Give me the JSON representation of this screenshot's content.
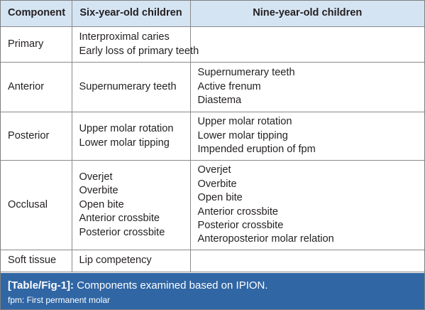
{
  "table": {
    "headers": [
      "Component",
      "Six-year-old children",
      "Nine-year-old children"
    ],
    "rows": [
      {
        "component": "Primary",
        "six_year_old": [
          "Interproximal caries",
          "Early loss of primary teeth"
        ],
        "nine_year_old": []
      },
      {
        "component": "Anterior",
        "six_year_old": [
          "Supernumerary teeth"
        ],
        "nine_year_old": [
          "Supernumerary teeth",
          "Active frenum",
          "Diastema"
        ]
      },
      {
        "component": "Posterior",
        "six_year_old": [
          "Upper molar rotation",
          "Lower molar tipping"
        ],
        "nine_year_old": [
          "Upper molar rotation",
          "Lower molar tipping",
          "Impended eruption of fpm"
        ]
      },
      {
        "component": "Occlusal",
        "six_year_old": [
          "Overjet",
          "Overbite",
          "Open bite",
          "Anterior crossbite",
          "Posterior crossbite"
        ],
        "nine_year_old": [
          "Overjet",
          "Overbite",
          "Open bite",
          "Anterior crossbite",
          "Posterior crossbite",
          "Anteroposterior molar relation"
        ]
      },
      {
        "component": "Soft tissue",
        "six_year_old": [
          "Lip competency"
        ],
        "nine_year_old": []
      }
    ]
  },
  "caption": {
    "tag": "[Table/Fig-1]:",
    "text": "Components examined based on IPION.",
    "footnote": "fpm: First permanent molar"
  },
  "colors": {
    "header_background": "#d5e4f3",
    "caption_background": "#3066a4",
    "caption_text": "#ffffff",
    "body_text": "#231f20",
    "grid_lines": "#8a8a8a"
  }
}
